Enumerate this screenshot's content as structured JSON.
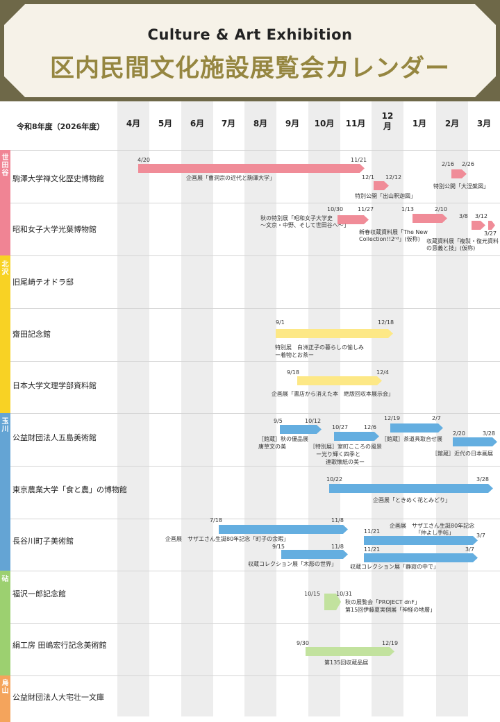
{
  "header": {
    "subtitle": "Culture & Art Exhibition",
    "title": "区内民間文化施設展覧会カレンダー"
  },
  "calendar": {
    "fiscal_year": "令和8年度（2026年度）",
    "months": [
      "4月",
      "5月",
      "6月",
      "7月",
      "8月",
      "9月",
      "10月",
      "11月",
      "12\n月",
      "1月",
      "2月",
      "3月"
    ]
  },
  "areas": [
    {
      "name": "世田谷",
      "color": "#f08494"
    },
    {
      "name": "北沢",
      "color": "#f8d224"
    },
    {
      "name": "玉川",
      "color": "#64a4d4"
    },
    {
      "name": "砧",
      "color": "#9cd070"
    },
    {
      "name": "烏山",
      "color": "#f4a45c"
    }
  ],
  "facilities": [
    "駒澤大学禅文化歴史博物館",
    "昭和女子大学光葉博物館",
    "旧尾崎テオドラ邸",
    "齋田記念館",
    "日本大学文理学部資料館",
    "公益財団法人五島美術館",
    "東京農業大学「食と農」の博物館",
    "長谷川町子美術館",
    "福沢一郎記念館",
    "絹工房 田嶋宏行記念美術館",
    "公益財団法人大宅壮一文庫"
  ],
  "bar_colors": {
    "setagaya": "#f08c98",
    "kitazawa": "#fde886",
    "tamagawa": "#64aee0",
    "kinuta": "#c2e29e"
  },
  "events": {
    "e1": {
      "start": "4/20",
      "end": "11/21",
      "label": "企画展「曹洞宗の近代と駒澤大学」"
    },
    "e2": {
      "start": "12/1",
      "end": "12/12",
      "label": "特別公開「出山釈迦図」"
    },
    "e3": {
      "start": "2/16",
      "end": "2/26",
      "label": "特別公開「大涅槃図」"
    },
    "e4": {
      "start": "10/30",
      "end": "11/27",
      "label1": "秋の特別展「昭和女子大学史",
      "label2": "～文京・中野、そして世田谷へ～」"
    },
    "e5": {
      "start": "1/13",
      "end": "2/10",
      "label1": "新春収蔵資料展「The New",
      "label2": "Collection!!2ⁿᵈ」(仮称)"
    },
    "e6": {
      "start": "3/8",
      "end": "3/12",
      "label1": "収蔵資料展「複製・復元資料",
      "label2": "の意義と技」(仮称)"
    },
    "e7": {
      "end": "3/27"
    },
    "e8": {
      "start": "9/1",
      "end": "12/18",
      "label1": "特別展　白洲正子の暮らしの愉しみ",
      "label2": "ー着物とお茶ー"
    },
    "e9": {
      "start": "9/18",
      "end": "12/4",
      "label": "企画展「書店から消えた本　絶版回収本展示会」"
    },
    "e10": {
      "start": "9/5",
      "end": "10/12",
      "label1": "［館蔵］秋の優品展",
      "label2": "唐草文の美"
    },
    "e11": {
      "start": "10/27",
      "end": "12/6",
      "label1": "［特別展］室町こころの風景",
      "label2": "ー光り輝く四季と",
      "label3": "連歌懐紙の美ー"
    },
    "e12": {
      "start": "12/19",
      "end": "2/7",
      "label": "［館蔵］茶道具取合せ展"
    },
    "e13": {
      "start": "2/20",
      "end": "3/28",
      "label": "［館蔵］近代の日本画展"
    },
    "e14": {
      "start": "10/22",
      "end": "3/28",
      "label": "企画展「ときめく花とみどり」"
    },
    "e15": {
      "start": "7/18",
      "end": "11/8",
      "label": "企画展　サザエさん生誕80年記念「町子の余暇」"
    },
    "e16": {
      "start": "11/21",
      "end": "3/7",
      "label1": "企画展　サザエさん生誕80年記念",
      "label2": "「仲よし手帖」"
    },
    "e17": {
      "start": "9/15",
      "end": "11/8",
      "label": "収蔵コレクション展「木彫の世界」"
    },
    "e18": {
      "start": "11/21",
      "end": "3/7",
      "label": "収蔵コレクション展「静寂の中で」"
    },
    "e19": {
      "start": "10/15",
      "end": "10/31",
      "label1": "秋の展覧会「PROJECT dnF」",
      "label2": "第15回伊藤夏実個展「神経の地層」"
    },
    "e20": {
      "start": "9/30",
      "end": "12/19",
      "label": "第135回収蔵品展"
    }
  }
}
